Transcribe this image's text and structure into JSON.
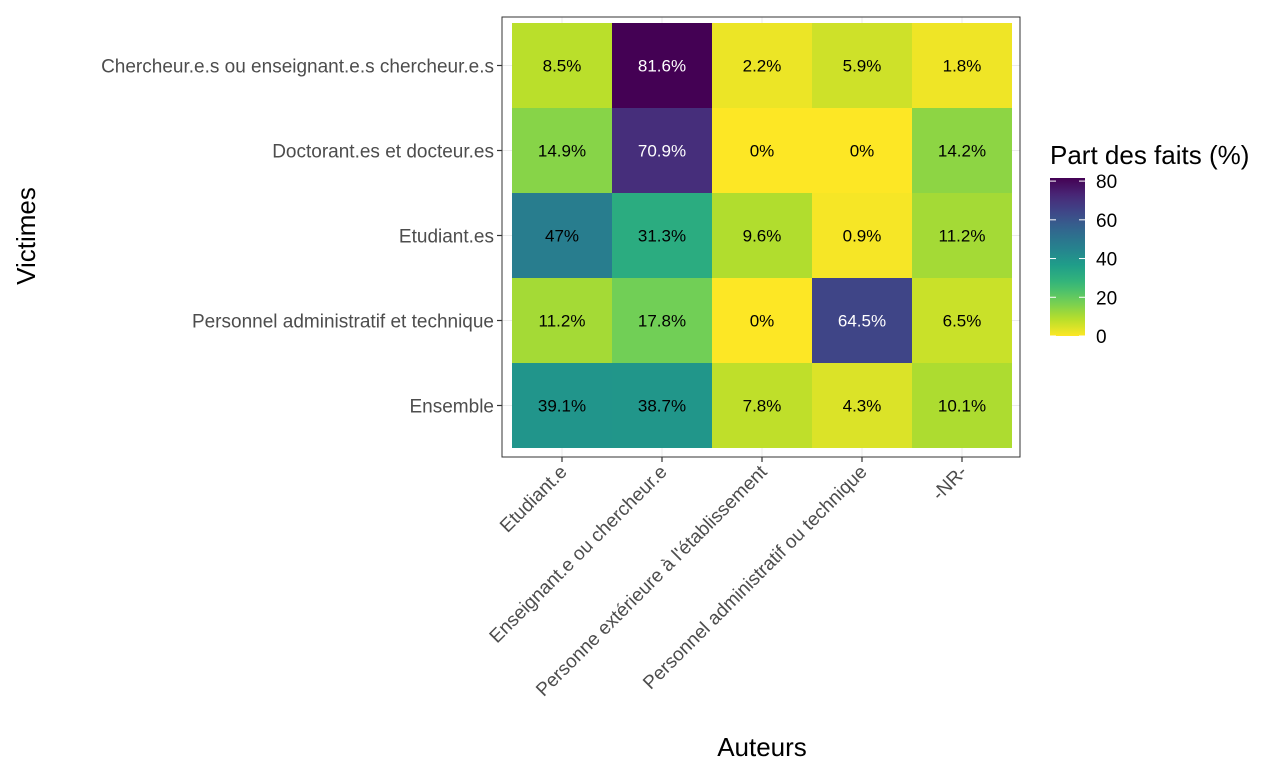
{
  "chart_data": {
    "type": "heatmap",
    "xlabel": "Auteurs",
    "ylabel": "Victimes",
    "x_categories": [
      "Etudiant.e",
      "Enseignant.e ou chercheur.e",
      "Personne extérieure à l'établissement",
      "Personnel administratif ou technique",
      "-NR-"
    ],
    "y_categories": [
      "Chercheur.e.s ou enseignant.e.s chercheur.e.s",
      "Doctorant.es et docteur.es",
      "Etudiant.es",
      "Personnel administratif et technique",
      "Ensemble"
    ],
    "values": [
      [
        8.5,
        81.6,
        2.2,
        5.9,
        1.8
      ],
      [
        14.9,
        70.9,
        0,
        0,
        14.2
      ],
      [
        47,
        31.3,
        9.6,
        0.9,
        11.2
      ],
      [
        11.2,
        17.8,
        0,
        64.5,
        6.5
      ],
      [
        39.1,
        38.7,
        7.8,
        4.3,
        10.1
      ]
    ],
    "cell_labels": [
      [
        "8.5%",
        "81.6%",
        "2.2%",
        "5.9%",
        "1.8%"
      ],
      [
        "14.9%",
        "70.9%",
        "0%",
        "0%",
        "14.2%"
      ],
      [
        "47%",
        "31.3%",
        "9.6%",
        "0.9%",
        "11.2%"
      ],
      [
        "11.2%",
        "17.8%",
        "0%",
        "64.5%",
        "6.5%"
      ],
      [
        "39.1%",
        "38.7%",
        "7.8%",
        "4.3%",
        "10.1%"
      ]
    ],
    "legend": {
      "title": "Part des faits (%)",
      "ticks": [
        80,
        60,
        40,
        20,
        0
      ],
      "range": [
        0,
        81.6
      ],
      "colormap": "viridis (reversed: yellow = 0, dark purple = max)",
      "placement": "right"
    },
    "grid": true
  }
}
